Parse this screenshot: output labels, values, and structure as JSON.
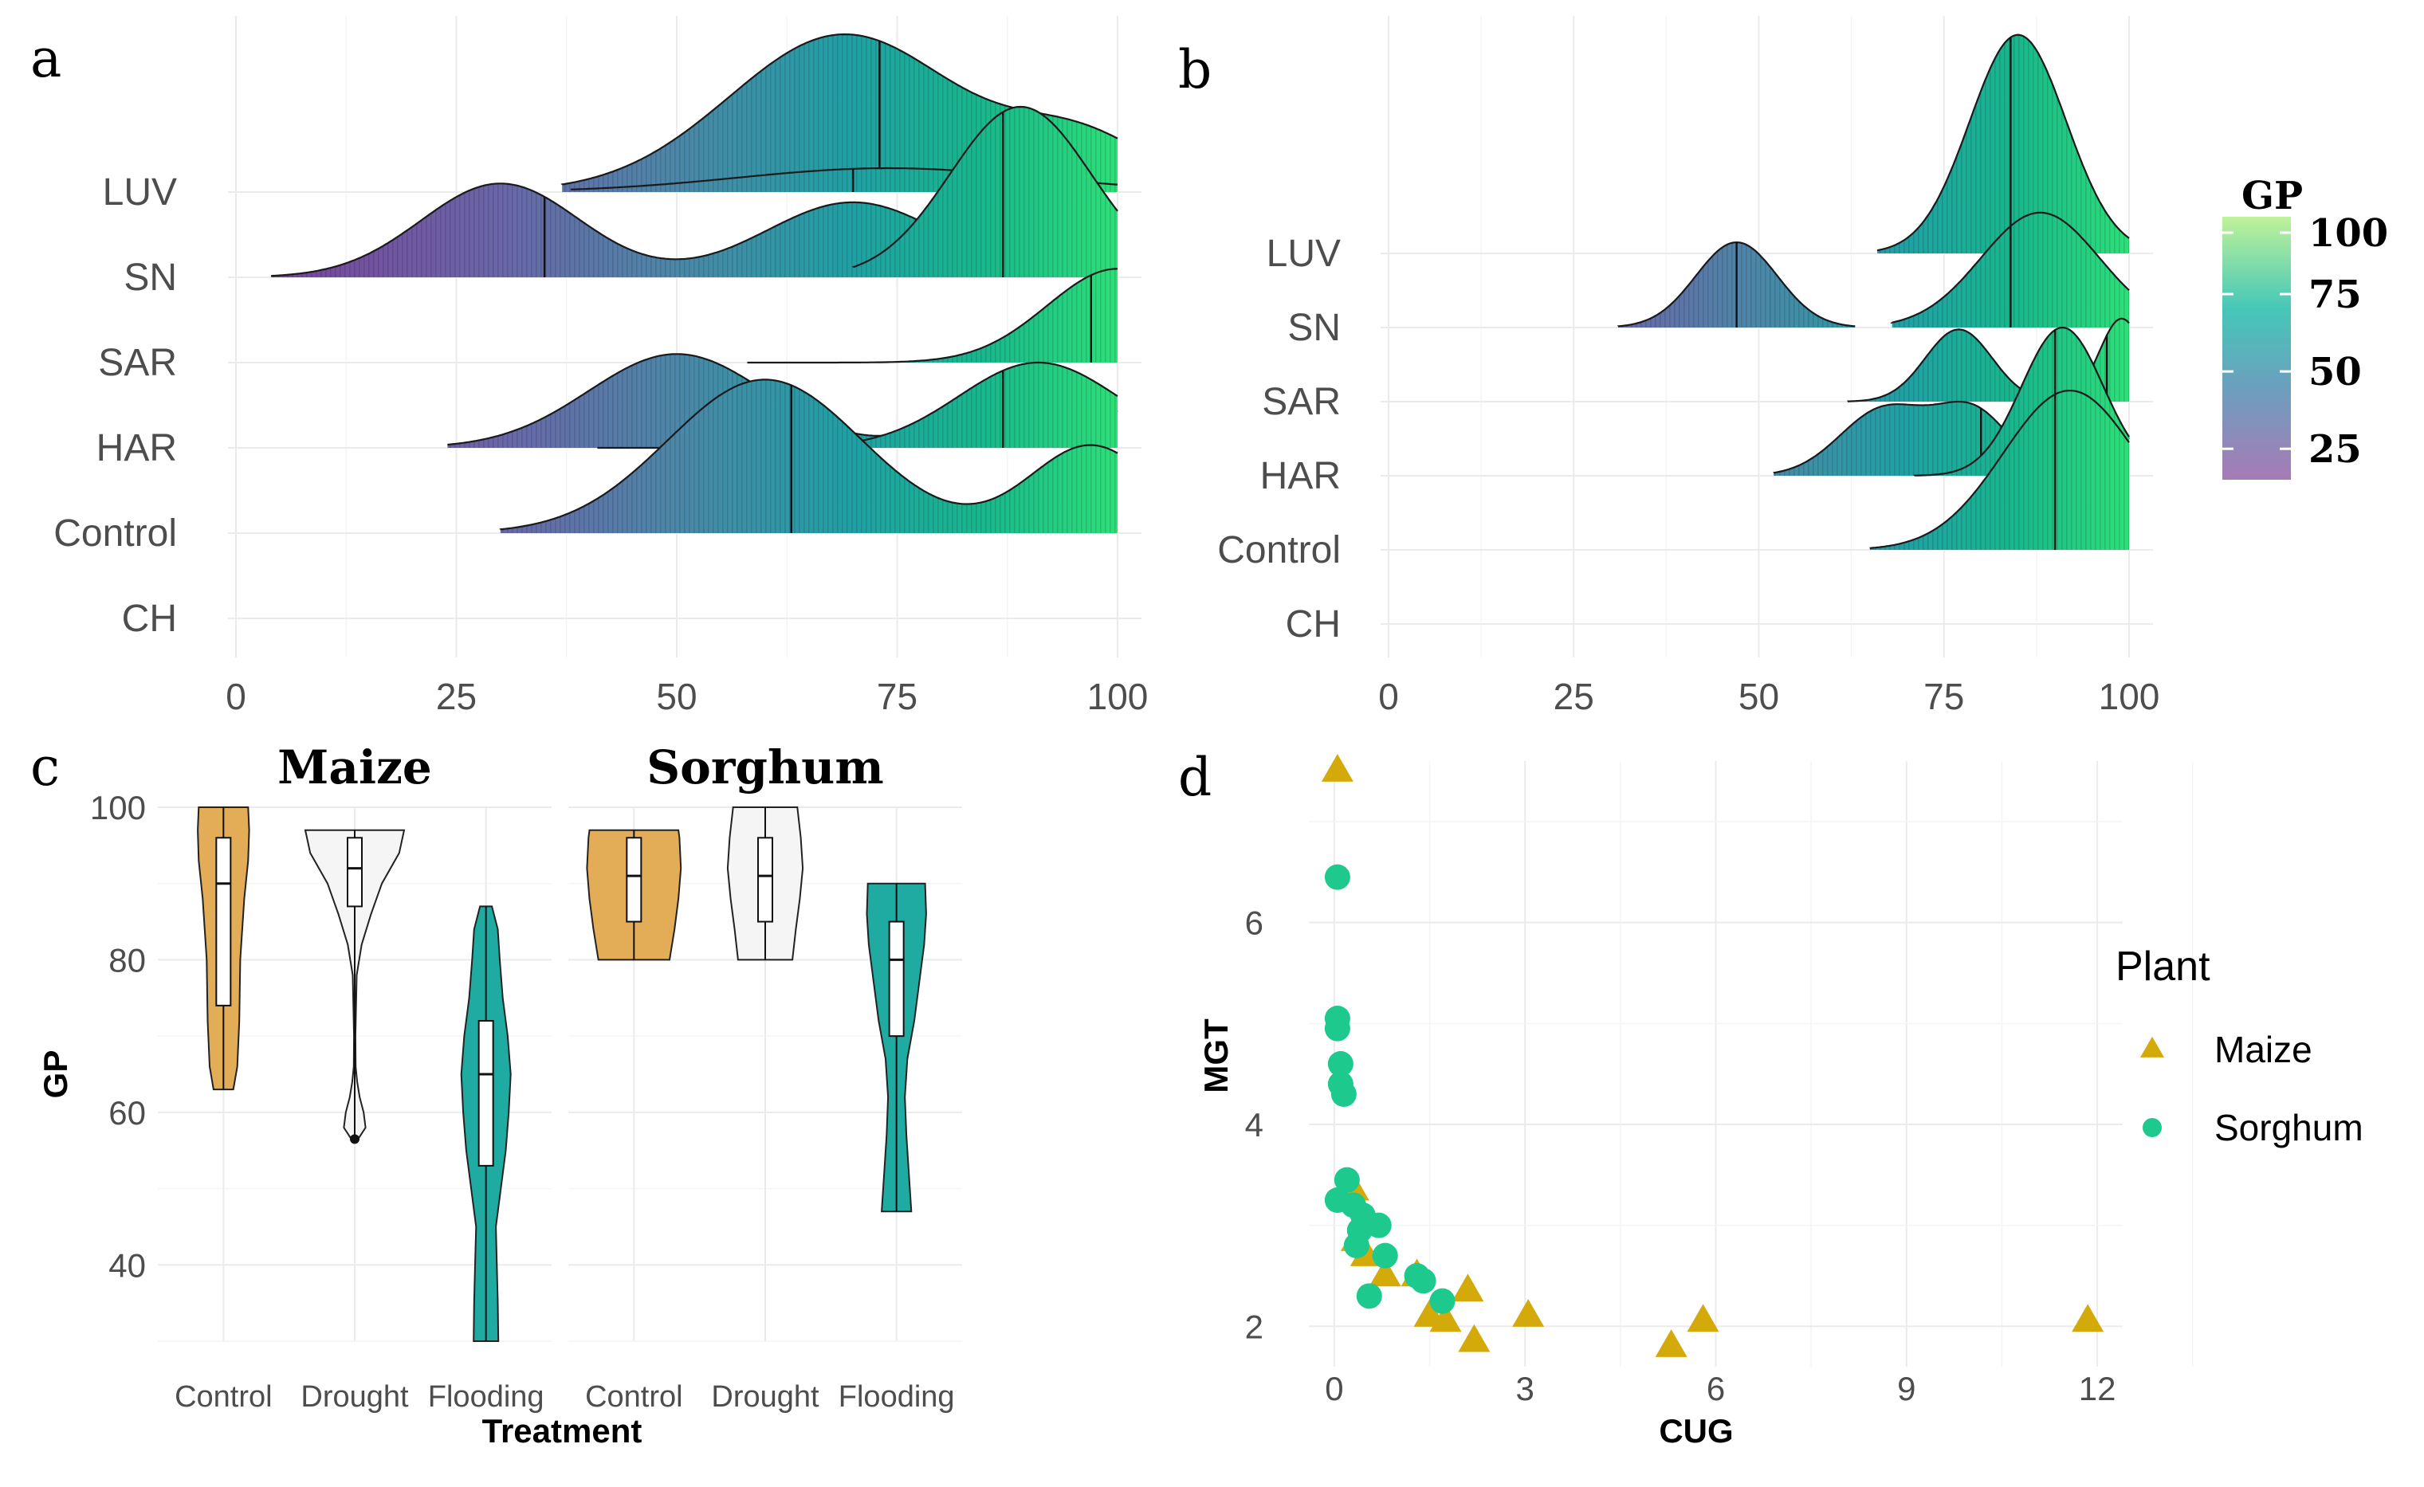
{
  "chart_data": [
    {
      "panel": "a",
      "type": "ridgeline",
      "panel_label": "a",
      "categories": [
        "LUV",
        "SN",
        "SAR",
        "HAR",
        "Control",
        "CH"
      ],
      "xlim": [
        0,
        100
      ],
      "xticks": [
        0,
        25,
        50,
        75,
        100
      ],
      "fill_scale": "GP",
      "ridges": [
        {
          "category": "LUV",
          "layers": [
            {
              "range": [
                37,
                100
              ],
              "median": 73,
              "peaks": [
                {
                  "mu": 69,
                  "sd": 13,
                  "w": 1.0
                },
                {
                  "mu": 96,
                  "sd": 8,
                  "w": 0.32
                }
              ],
              "h": 1.85
            },
            {
              "range": [
                38,
                100
              ],
              "median": 70,
              "peaks": [
                {
                  "mu": 74,
                  "sd": 17,
                  "w": 1.0
                }
              ],
              "h": 0.28
            }
          ]
        },
        {
          "category": "SN",
          "layers": [
            {
              "range": [
                4,
                100
              ],
              "median": 35,
              "peaks": [
                {
                  "mu": 30,
                  "sd": 9,
                  "w": 1.0
                },
                {
                  "mu": 70,
                  "sd": 10,
                  "w": 0.8
                }
              ],
              "h": 1.1
            },
            {
              "range": [
                70,
                100
              ],
              "median": 87,
              "peaks": [
                {
                  "mu": 89,
                  "sd": 8,
                  "w": 1.0
                }
              ],
              "h": 2.0
            }
          ]
        },
        {
          "category": "SAR",
          "layers": [
            {
              "range": [
                58,
                100
              ],
              "median": 97,
              "peaks": [
                {
                  "mu": 100,
                  "sd": 8,
                  "w": 1.0
                }
              ],
              "h": 1.1
            }
          ]
        },
        {
          "category": "HAR",
          "layers": [
            {
              "range": [
                24,
                100
              ],
              "median": 87,
              "peaks": [
                {
                  "mu": 50,
                  "sd": 10,
                  "w": 1.0
                },
                {
                  "mu": 91,
                  "sd": 8,
                  "w": 0.72
                }
              ],
              "h": 1.1
            },
            {
              "range": [
                41,
                100
              ],
              "median": 87,
              "peaks": [
                {
                  "mu": 91,
                  "sd": 9,
                  "w": 1.0
                }
              ],
              "h": 1.0
            }
          ]
        },
        {
          "category": "Control",
          "layers": [
            {
              "range": [
                30,
                100
              ],
              "median": 63,
              "peaks": [
                {
                  "mu": 60,
                  "sd": 11,
                  "w": 1.0
                },
                {
                  "mu": 97,
                  "sd": 7,
                  "w": 0.57
                }
              ],
              "h": 1.8
            }
          ]
        },
        {
          "category": "CH",
          "layers": []
        }
      ]
    },
    {
      "panel": "b",
      "type": "ridgeline",
      "panel_label": "b",
      "categories": [
        "LUV",
        "SN",
        "SAR",
        "HAR",
        "Control",
        "CH"
      ],
      "xlim": [
        0,
        100
      ],
      "xticks": [
        0,
        25,
        50,
        75,
        100
      ],
      "fill_scale": "GP",
      "ridges": [
        {
          "category": "LUV",
          "layers": [
            {
              "range": [
                66,
                100
              ],
              "median": 84,
              "peaks": [
                {
                  "mu": 85,
                  "sd": 6.5,
                  "w": 1.0
                }
              ],
              "h": 2.95
            }
          ]
        },
        {
          "category": "SN",
          "layers": [
            {
              "range": [
                31,
                63
              ],
              "median": 47,
              "peaks": [
                {
                  "mu": 47,
                  "sd": 5.5,
                  "w": 1.0
                }
              ],
              "h": 1.15
            },
            {
              "range": [
                68,
                100
              ],
              "median": 84,
              "peaks": [
                {
                  "mu": 88,
                  "sd": 8,
                  "w": 1.0
                }
              ],
              "h": 1.55
            }
          ]
        },
        {
          "category": "SAR",
          "layers": [
            {
              "range": [
                62,
                100
              ],
              "median": 97,
              "peaks": [
                {
                  "mu": 77,
                  "sd": 4.5,
                  "w": 1.0
                },
                {
                  "mu": 99,
                  "sd": 3,
                  "w": 1.15
                }
              ],
              "h": 1.12
            }
          ]
        },
        {
          "category": "HAR",
          "layers": [
            {
              "range": [
                52,
                100
              ],
              "median": 80,
              "peaks": [
                {
                  "mu": 67,
                  "sd": 6,
                  "w": 0.75
                },
                {
                  "mu": 79,
                  "sd": 5,
                  "w": 0.7
                },
                {
                  "mu": 97,
                  "sd": 3.5,
                  "w": 0.6
                }
              ],
              "h": 1.0
            },
            {
              "range": [
                71,
                100
              ],
              "median": 90,
              "peaks": [
                {
                  "mu": 91,
                  "sd": 5.5,
                  "w": 1.0
                }
              ],
              "h": 2.0
            }
          ]
        },
        {
          "category": "Control",
          "layers": [
            {
              "range": [
                65,
                100
              ],
              "median": 90,
              "peaks": [
                {
                  "mu": 92,
                  "sd": 9,
                  "w": 1.0
                }
              ],
              "h": 2.15
            }
          ]
        },
        {
          "category": "CH",
          "layers": []
        }
      ]
    },
    {
      "panel": "c",
      "type": "violin",
      "panel_label": "c",
      "xlabel": "Treatment",
      "ylabel": "GP",
      "ylim": [
        30,
        100
      ],
      "yticks": [
        40,
        60,
        80,
        100
      ],
      "facets": [
        {
          "title": "Maize",
          "groups": [
            {
              "treatment": "Control",
              "range": [
                63,
                100
              ],
              "median": 90,
              "q1": 74,
              "q3": 96,
              "shape": [
                [
                  63,
                  0.2
                ],
                [
                  66,
                  0.28
                ],
                [
                  72,
                  0.32
                ],
                [
                  80,
                  0.34
                ],
                [
                  88,
                  0.42
                ],
                [
                  93,
                  0.5
                ],
                [
                  97,
                  0.52
                ],
                [
                  100,
                  0.5
                ]
              ],
              "outliers": []
            },
            {
              "treatment": "Drought",
              "range": [
                56,
                97
              ],
              "median": 92,
              "q1": 87,
              "q3": 96,
              "shape": [
                [
                  56,
                  0.02
                ],
                [
                  58,
                  0.22
                ],
                [
                  60,
                  0.18
                ],
                [
                  62,
                  0.1
                ],
                [
                  64,
                  0.05
                ],
                [
                  66,
                  0.02
                ],
                [
                  70,
                  0.015
                ],
                [
                  78,
                  0.04
                ],
                [
                  82,
                  0.14
                ],
                [
                  86,
                  0.33
                ],
                [
                  90,
                  0.55
                ],
                [
                  94,
                  0.9
                ],
                [
                  97,
                  1.0
                ]
              ],
              "outliers": [
                56.5
              ]
            },
            {
              "treatment": "Flooding",
              "range": [
                30,
                87
              ],
              "median": 65,
              "q1": 53,
              "q3": 72,
              "shape": [
                [
                  30,
                  0.25
                ],
                [
                  35,
                  0.24
                ],
                [
                  40,
                  0.22
                ],
                [
                  45,
                  0.2
                ],
                [
                  50,
                  0.3
                ],
                [
                  55,
                  0.4
                ],
                [
                  60,
                  0.46
                ],
                [
                  65,
                  0.5
                ],
                [
                  70,
                  0.44
                ],
                [
                  75,
                  0.34
                ],
                [
                  80,
                  0.28
                ],
                [
                  84,
                  0.24
                ],
                [
                  87,
                  0.12
                ]
              ],
              "outliers": []
            }
          ]
        },
        {
          "title": "Sorghum",
          "groups": [
            {
              "treatment": "Control",
              "range": [
                80,
                97
              ],
              "median": 91,
              "q1": 85,
              "q3": 96,
              "shape": [
                [
                  80,
                  0.72
                ],
                [
                  84,
                  0.82
                ],
                [
                  88,
                  0.9
                ],
                [
                  92,
                  0.95
                ],
                [
                  96,
                  0.92
                ],
                [
                  97,
                  0.9
                ]
              ],
              "outliers": []
            },
            {
              "treatment": "Drought",
              "range": [
                80,
                100
              ],
              "median": 91,
              "q1": 85,
              "q3": 96,
              "shape": [
                [
                  80,
                  0.55
                ],
                [
                  84,
                  0.62
                ],
                [
                  88,
                  0.7
                ],
                [
                  92,
                  0.76
                ],
                [
                  96,
                  0.72
                ],
                [
                  100,
                  0.65
                ]
              ],
              "outliers": []
            },
            {
              "treatment": "Flooding",
              "range": [
                47,
                90
              ],
              "median": 80,
              "q1": 70,
              "q3": 85,
              "shape": [
                [
                  47,
                  0.3
                ],
                [
                  52,
                  0.25
                ],
                [
                  57,
                  0.2
                ],
                [
                  62,
                  0.17
                ],
                [
                  67,
                  0.22
                ],
                [
                  72,
                  0.36
                ],
                [
                  77,
                  0.46
                ],
                [
                  82,
                  0.56
                ],
                [
                  86,
                  0.6
                ],
                [
                  90,
                  0.58
                ]
              ],
              "outliers": []
            }
          ]
        }
      ],
      "fills": {
        "Control": "#E3AC57",
        "Drought": "#F5F5F5",
        "Flooding": "#1FABA1"
      }
    },
    {
      "panel": "d",
      "type": "scatter",
      "panel_label": "d",
      "xlabel": "CUG",
      "ylabel": "MGT",
      "xlim": [
        -0.4,
        12.4
      ],
      "ylim": [
        1.6,
        7.6
      ],
      "xticks": [
        0,
        3,
        6,
        9,
        12
      ],
      "yticks": [
        2,
        4,
        6
      ],
      "legend_title": "Plant",
      "series": [
        {
          "name": "Maize",
          "marker": "triangle",
          "color": "#D4A90A",
          "points": [
            [
              0.05,
              7.5
            ],
            [
              0.3,
              3.35
            ],
            [
              0.35,
              2.85
            ],
            [
              0.5,
              2.7
            ],
            [
              0.8,
              2.5
            ],
            [
              1.3,
              2.5
            ],
            [
              1.5,
              2.1
            ],
            [
              1.75,
              2.05
            ],
            [
              2.1,
              2.35
            ],
            [
              2.2,
              1.85
            ],
            [
              3.05,
              2.1
            ],
            [
              5.3,
              1.8
            ],
            [
              5.8,
              2.05
            ],
            [
              11.85,
              2.05
            ]
          ]
        },
        {
          "name": "Sorghum",
          "marker": "circle",
          "color": "#1DC98C",
          "points": [
            [
              0.05,
              6.45
            ],
            [
              0.05,
              5.05
            ],
            [
              0.05,
              4.95
            ],
            [
              0.1,
              4.6
            ],
            [
              0.1,
              4.4
            ],
            [
              0.15,
              4.3
            ],
            [
              0.2,
              3.45
            ],
            [
              0.05,
              3.25
            ],
            [
              0.3,
              3.2
            ],
            [
              0.4,
              2.95
            ],
            [
              0.45,
              3.1
            ],
            [
              0.7,
              3.0
            ],
            [
              0.35,
              2.8
            ],
            [
              0.8,
              2.7
            ],
            [
              1.3,
              2.5
            ],
            [
              1.4,
              2.45
            ],
            [
              0.55,
              2.3
            ],
            [
              1.7,
              2.25
            ]
          ]
        }
      ]
    }
  ],
  "colorbar": {
    "title": "GP",
    "ticks": [
      100,
      75,
      50,
      25
    ],
    "low_color": "#A77AB5",
    "high_color": "#BFF29A"
  },
  "palette": {
    "gp_0": "#7B3F99",
    "gp_30": "#6A66A8",
    "gp_50": "#4B87A8",
    "gp_70": "#1FA1A4",
    "gp_85": "#18B88C",
    "gp_100": "#2DE078"
  }
}
